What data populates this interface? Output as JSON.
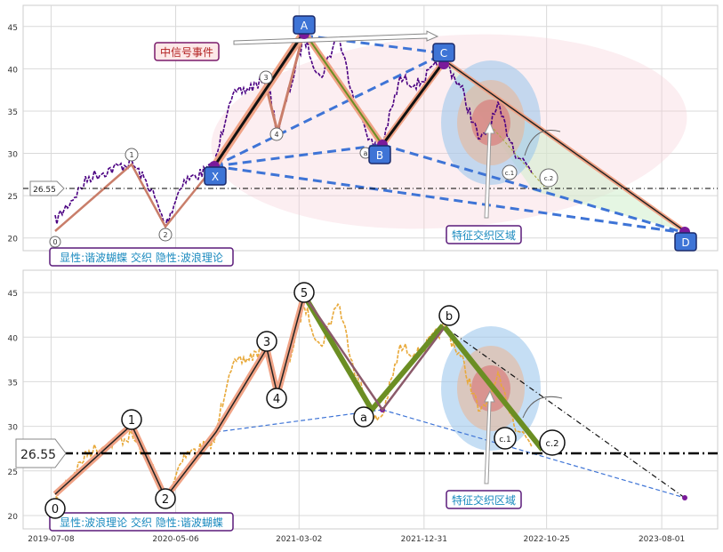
{
  "chart_data": [
    {
      "type": "line",
      "panel": "top",
      "ylim": [
        18.5,
        47.5
      ],
      "yticks": [
        20,
        25,
        30,
        35,
        40,
        45
      ],
      "grid": true,
      "reference_line": {
        "value": 26.55,
        "label": "26.55"
      },
      "price_color": "#4b0082",
      "pattern": {
        "points": [
          {
            "label": "X",
            "x": "2020-09-28",
            "y": 28.8
          },
          {
            "label": "A",
            "x": "2021-02-25",
            "y": 44.5
          },
          {
            "label": "B",
            "x": "2021-09-24",
            "y": 31.3
          },
          {
            "label": "C",
            "x": "2022-03-05",
            "y": 41.2
          },
          {
            "label": "D",
            "x": "2023-10-05",
            "y": 21.7
          }
        ]
      },
      "wave_labels": [
        {
          "label": "0",
          "x": "2019-08-01",
          "y": 20.5
        },
        {
          "label": "1",
          "x": "2020-01-30",
          "y": 30.7
        },
        {
          "label": "2",
          "x": "2020-06-10",
          "y": 21.5
        },
        {
          "label": "3",
          "x": "2020-12-20",
          "y": 39.3
        },
        {
          "label": "4",
          "x": "2021-01-25",
          "y": 32.9
        },
        {
          "label": "a",
          "x": "2021-09-15",
          "y": 30.6
        },
        {
          "label": "c.1",
          "x": "2022-08-15",
          "y": 28.5
        },
        {
          "label": "c.2",
          "x": "2022-10-30",
          "y": 27.9
        }
      ],
      "annotations": {
        "signal": "中信号事件",
        "zone": "特征交织区域",
        "legend": "显性:谐波蝴蝶 交织 隐性:波浪理论"
      }
    },
    {
      "type": "line",
      "panel": "bottom",
      "ylim": [
        18.5,
        47.5
      ],
      "yticks": [
        20,
        25,
        30,
        35,
        40,
        45
      ],
      "grid": true,
      "reference_line": {
        "value": 26.55,
        "label": "26.55"
      },
      "price_color": "#e8a93a",
      "xticks": [
        "2019-07-08",
        "2020-05-06",
        "2021-03-02",
        "2021-12-31",
        "2022-10-25",
        "2023-08-01"
      ],
      "wave_labels": [
        {
          "label": "0",
          "x": "2019-08-01",
          "y": 20.5
        },
        {
          "label": "1",
          "x": "2020-01-30",
          "y": 30.5
        },
        {
          "label": "2",
          "x": "2020-06-10",
          "y": 21.5
        },
        {
          "label": "3",
          "x": "2020-12-20",
          "y": 39.3
        },
        {
          "label": "4",
          "x": "2021-01-25",
          "y": 32.9
        },
        {
          "label": "5",
          "x": "2021-03-02",
          "y": 45.0
        },
        {
          "label": "a",
          "x": "2021-09-15",
          "y": 30.8
        },
        {
          "label": "b",
          "x": "2022-02-28",
          "y": 42.5
        },
        {
          "label": "c.1",
          "x": "2022-08-05",
          "y": 28.5
        },
        {
          "label": "c.2",
          "x": "2022-10-30",
          "y": 27.8
        }
      ],
      "annotations": {
        "zone": "特征交织区域",
        "legend": "显性:波浪理论 交织 隐性:谐波蝴蝶"
      }
    }
  ]
}
